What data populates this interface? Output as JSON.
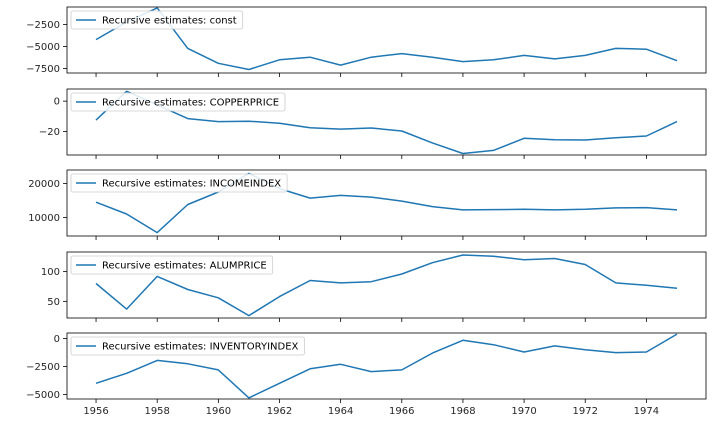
{
  "chart_data": [
    {
      "type": "line",
      "legend": "Recursive estimates: const",
      "legend_position": "upper-left",
      "color": "#1f77b4",
      "x": [
        1956,
        1957,
        1958,
        1959,
        1960,
        1961,
        1962,
        1963,
        1964,
        1965,
        1966,
        1967,
        1968,
        1969,
        1970,
        1971,
        1972,
        1973,
        1974,
        1975
      ],
      "y": [
        -4200,
        -2200,
        -600,
        -5200,
        -6900,
        -7600,
        -6500,
        -6200,
        -7100,
        -6200,
        -5800,
        -6200,
        -6700,
        -6500,
        -6000,
        -6400,
        -6000,
        -5200,
        -5300,
        -6600
      ],
      "ylim": [
        -8000,
        -500
      ],
      "yticks": [
        -7500,
        -5000,
        -2500
      ],
      "ytick_labels": [
        "−7500",
        "−5000",
        "−2500"
      ]
    },
    {
      "type": "line",
      "legend": "Recursive estimates: COPPERPRICE",
      "legend_position": "upper-left",
      "color": "#1f77b4",
      "x": [
        1956,
        1957,
        1958,
        1959,
        1960,
        1961,
        1962,
        1963,
        1964,
        1965,
        1966,
        1967,
        1968,
        1969,
        1970,
        1971,
        1972,
        1973,
        1974,
        1975
      ],
      "y": [
        -12.5,
        6.5,
        -2.5,
        -11.5,
        -13.5,
        -13.2,
        -14.6,
        -17.6,
        -18.4,
        -17.7,
        -19.7,
        -27.5,
        -34.5,
        -32.5,
        -24.5,
        -25.5,
        -25.6,
        -24.1,
        -23,
        -13.5
      ],
      "ylim": [
        -35.5,
        8
      ],
      "yticks": [
        -20,
        0
      ],
      "ytick_labels": [
        "−20",
        "0"
      ]
    },
    {
      "type": "line",
      "legend": "Recursive estimates: INCOMEINDEX",
      "legend_position": "upper-left",
      "color": "#1f77b4",
      "x": [
        1956,
        1957,
        1958,
        1959,
        1960,
        1961,
        1962,
        1963,
        1964,
        1965,
        1966,
        1967,
        1968,
        1969,
        1970,
        1971,
        1972,
        1973,
        1974,
        1975
      ],
      "y": [
        14500,
        11000,
        5500,
        13800,
        17500,
        23000,
        18500,
        15700,
        16500,
        16000,
        14800,
        13200,
        12200,
        12300,
        12400,
        12200,
        12400,
        12800,
        12900,
        12200
      ],
      "ylim": [
        4500,
        24000
      ],
      "yticks": [
        10000,
        20000
      ],
      "ytick_labels": [
        "10000",
        "20000"
      ]
    },
    {
      "type": "line",
      "legend": "Recursive estimates: ALUMPRICE",
      "legend_position": "upper-left",
      "color": "#1f77b4",
      "x": [
        1956,
        1957,
        1958,
        1959,
        1960,
        1961,
        1962,
        1963,
        1964,
        1965,
        1966,
        1967,
        1968,
        1969,
        1970,
        1971,
        1972,
        1973,
        1974,
        1975
      ],
      "y": [
        80,
        37,
        92,
        70,
        56,
        26,
        58,
        85,
        81,
        83,
        96,
        115,
        128,
        126,
        120,
        122,
        112,
        81,
        77,
        72
      ],
      "ylim": [
        22,
        133
      ],
      "yticks": [
        50,
        100
      ],
      "ytick_labels": [
        "50",
        "100"
      ]
    },
    {
      "type": "line",
      "legend": "Recursive estimates: INVENTORYINDEX",
      "legend_position": "upper-left",
      "color": "#1f77b4",
      "x": [
        1956,
        1957,
        1958,
        1959,
        1960,
        1961,
        1962,
        1963,
        1964,
        1965,
        1966,
        1967,
        1968,
        1969,
        1970,
        1971,
        1972,
        1973,
        1974,
        1975
      ],
      "y": [
        -4000,
        -3100,
        -1950,
        -2250,
        -2800,
        -5300,
        -4000,
        -2700,
        -2300,
        -2950,
        -2800,
        -1300,
        -150,
        -550,
        -1200,
        -650,
        -1000,
        -1250,
        -1200,
        400
      ],
      "ylim": [
        -5400,
        500
      ],
      "yticks": [
        -5000,
        -2500,
        0
      ],
      "ytick_labels": [
        "−5000",
        "−2500",
        "0"
      ]
    }
  ],
  "x_axis": {
    "ticks": [
      1956,
      1958,
      1960,
      1962,
      1964,
      1966,
      1968,
      1970,
      1972,
      1974
    ],
    "xlim": [
      1955.05,
      1975.95
    ]
  }
}
